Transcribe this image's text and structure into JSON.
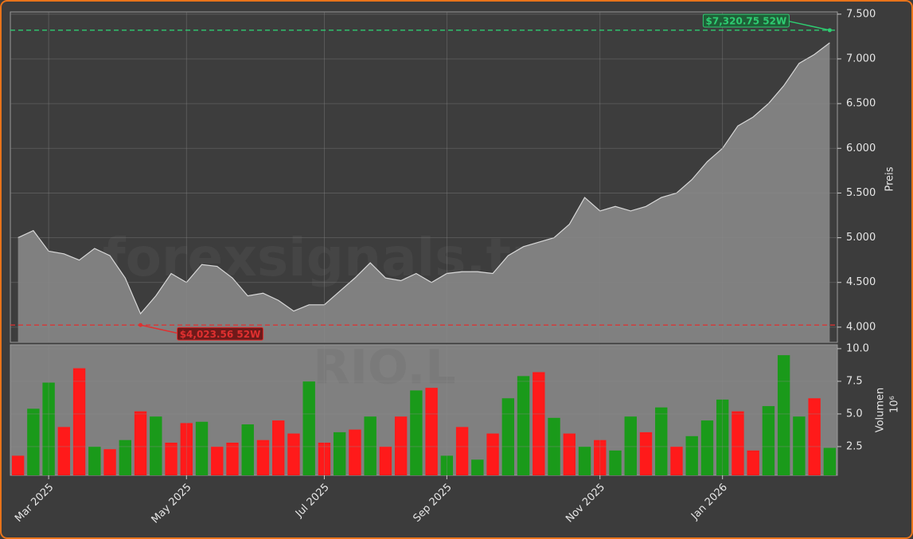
{
  "chart_data": [
    {
      "type": "area",
      "ylabel": "Preis",
      "watermark": "forexsignals.trade",
      "color": "#808080",
      "line_color": "#d8d8d8",
      "grid": true,
      "values": [
        5000,
        5080,
        4850,
        4820,
        4750,
        4880,
        4800,
        4550,
        4150,
        4350,
        4600,
        4500,
        4700,
        4680,
        4550,
        4350,
        4380,
        4300,
        4180,
        4250,
        4250,
        4400,
        4550,
        4720,
        4550,
        4520,
        4600,
        4500,
        4600,
        4620,
        4620,
        4600,
        4800,
        4900,
        4950,
        5000,
        5150,
        5450,
        5300,
        5350,
        5300,
        5350,
        5450,
        5500,
        5650,
        5850,
        6000,
        6250,
        6350,
        6500,
        6700,
        6950,
        7050,
        7180
      ],
      "ylim": [
        3830,
        7525
      ],
      "yticks": [
        {
          "value": 4000,
          "label": "4.000"
        },
        {
          "value": 4500,
          "label": "4.500"
        },
        {
          "value": 5000,
          "label": "5.000"
        },
        {
          "value": 5500,
          "label": "5.500"
        },
        {
          "value": 6000,
          "label": "6.000"
        },
        {
          "value": 6500,
          "label": "6.500"
        },
        {
          "value": 7000,
          "label": "7.000"
        },
        {
          "value": 7500,
          "label": "7.500"
        }
      ],
      "annotations": [
        {
          "text": "$7,320.75 52W",
          "value": 7320.75,
          "color": "#2ecc71",
          "box": "#1f5e37",
          "extreme": "max"
        },
        {
          "text": "$4,023.56 52W",
          "value": 4023.56,
          "color": "#e03030",
          "box": "#6e1a1a",
          "extreme": "min"
        }
      ]
    },
    {
      "type": "bar",
      "ylabel": "Volumen",
      "unit": "10⁶",
      "watermark": "RIO.L",
      "grid": true,
      "categories": [
        null,
        null,
        "Mar 2025",
        null,
        null,
        null,
        null,
        null,
        null,
        null,
        null,
        "May 2025",
        null,
        null,
        null,
        null,
        null,
        null,
        null,
        null,
        "Jul 2025",
        null,
        null,
        null,
        null,
        null,
        null,
        null,
        "Sep 2025",
        null,
        null,
        null,
        null,
        null,
        null,
        null,
        null,
        null,
        "Nov 2025",
        null,
        null,
        null,
        null,
        null,
        null,
        null,
        "Jan 2026",
        null,
        null,
        null,
        null,
        null,
        null,
        null
      ],
      "values": [
        1.8,
        5.4,
        7.4,
        4.0,
        8.5,
        2.5,
        2.3,
        3.0,
        5.2,
        4.8,
        2.8,
        4.3,
        4.4,
        2.5,
        2.8,
        4.2,
        3.0,
        4.5,
        3.5,
        7.5,
        2.8,
        3.6,
        3.8,
        4.8,
        2.5,
        4.8,
        6.8,
        7.0,
        1.8,
        4.0,
        1.5,
        3.5,
        6.2,
        7.9,
        8.2,
        4.7,
        3.5,
        2.5,
        3.0,
        2.2,
        4.8,
        3.6,
        5.5,
        2.5,
        3.3,
        4.5,
        6.1,
        5.2,
        2.2,
        5.6,
        9.5,
        4.8,
        6.2,
        2.4
      ],
      "bar_colors": [
        "#ff1a1a",
        "#1a9a1a",
        "#1a9a1a",
        "#ff1a1a",
        "#ff1a1a",
        "#1a9a1a",
        "#ff1a1a",
        "#1a9a1a",
        "#ff1a1a",
        "#1a9a1a",
        "#ff1a1a",
        "#ff1a1a",
        "#1a9a1a",
        "#ff1a1a",
        "#ff1a1a",
        "#1a9a1a",
        "#ff1a1a",
        "#ff1a1a",
        "#ff1a1a",
        "#1a9a1a",
        "#ff1a1a",
        "#1a9a1a",
        "#ff1a1a",
        "#1a9a1a",
        "#ff1a1a",
        "#ff1a1a",
        "#1a9a1a",
        "#ff1a1a",
        "#1a9a1a",
        "#ff1a1a",
        "#1a9a1a",
        "#ff1a1a",
        "#1a9a1a",
        "#1a9a1a",
        "#ff1a1a",
        "#1a9a1a",
        "#ff1a1a",
        "#1a9a1a",
        "#ff1a1a",
        "#1a9a1a",
        "#1a9a1a",
        "#ff1a1a",
        "#1a9a1a",
        "#ff1a1a",
        "#1a9a1a",
        "#1a9a1a",
        "#1a9a1a",
        "#ff1a1a",
        "#ff1a1a",
        "#1a9a1a",
        "#1a9a1a",
        "#1a9a1a",
        "#ff1a1a",
        "#1a9a1a"
      ],
      "ylim": [
        0.3,
        10.3
      ],
      "yticks": [
        2.5,
        {
          "value": 5,
          "label": "5.0"
        },
        7.5,
        {
          "value": 10,
          "label": "10.0"
        }
      ]
    }
  ]
}
